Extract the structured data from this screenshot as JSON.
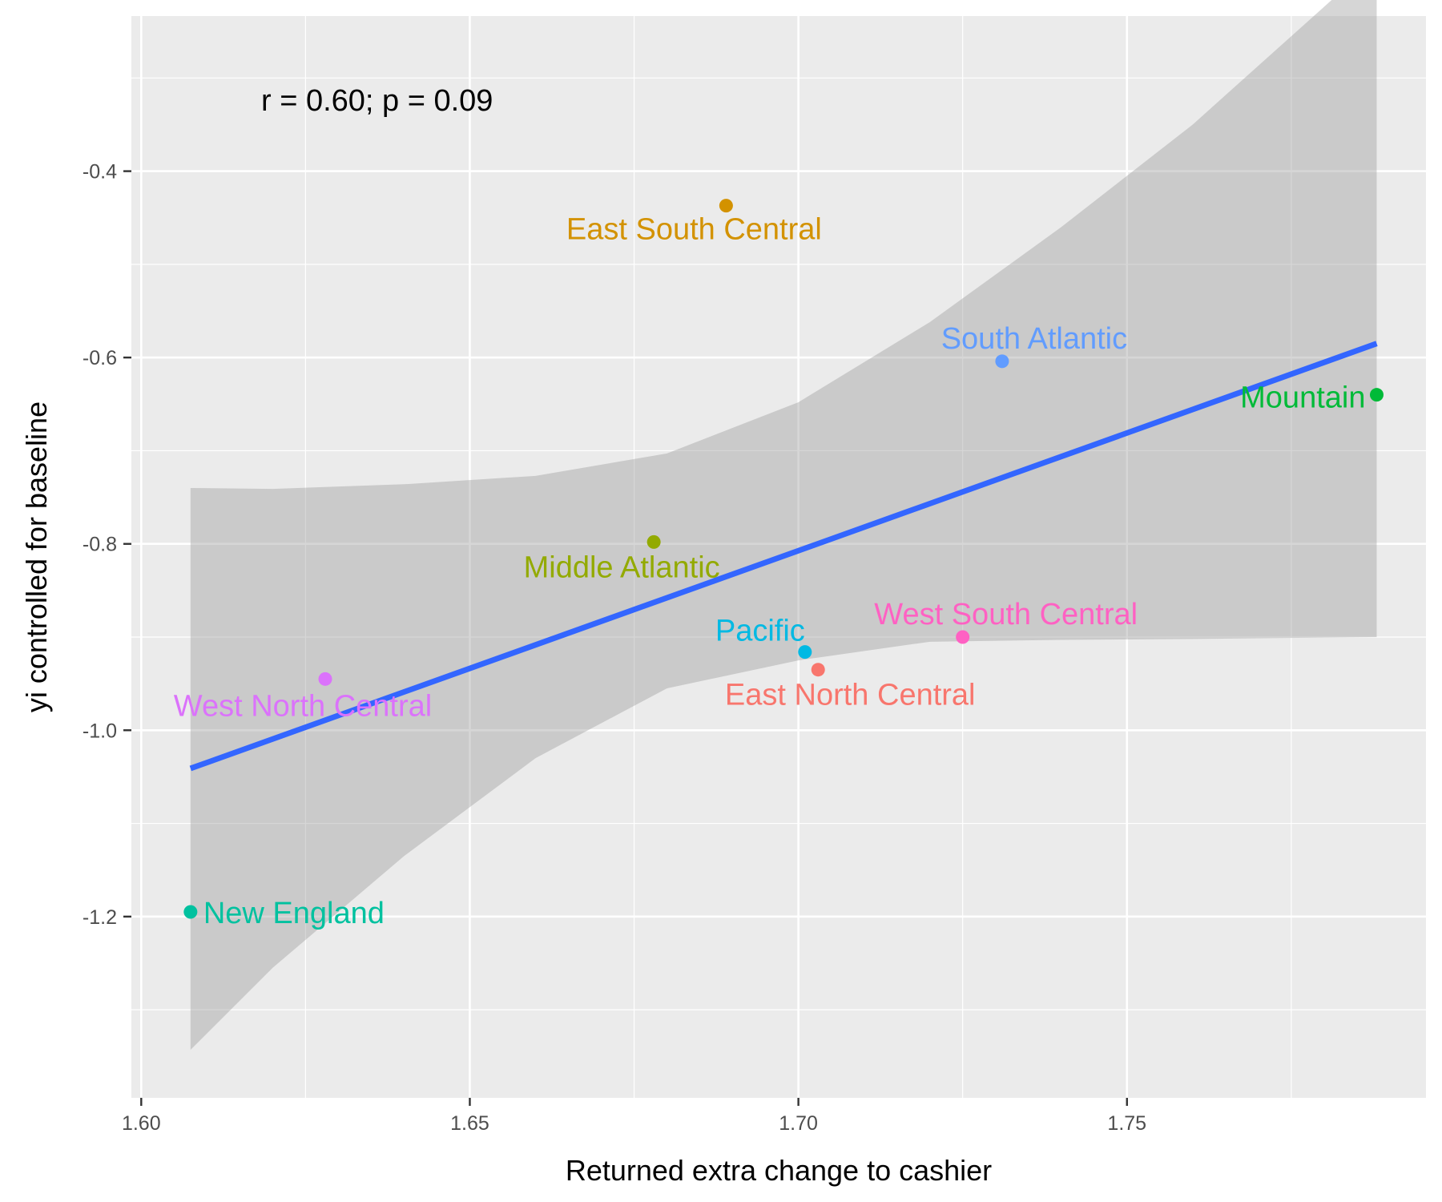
{
  "chart_data": {
    "type": "scatter",
    "title": "",
    "xlabel": "Returned extra change to cashier",
    "ylabel": "yi controlled for baseline",
    "xlim": [
      1.5985,
      1.7955
    ],
    "ylim": [
      -1.3945,
      -0.2335
    ],
    "x_ticks": [
      1.6,
      1.65,
      1.7,
      1.75
    ],
    "x_tick_labels": [
      "1.60",
      "1.65",
      "1.70",
      "1.75"
    ],
    "y_ticks": [
      -0.4,
      -0.6,
      -0.8,
      -1.0,
      -1.2
    ],
    "y_tick_labels": [
      "-0.4",
      "-0.6",
      "-0.8",
      "-1.0",
      "-1.2"
    ],
    "grid": true,
    "legend": "none",
    "annotation": "r = 0.60; p = 0.09",
    "points": [
      {
        "label": "East South Central",
        "x": 1.689,
        "y": -0.437,
        "color": "#D39200"
      },
      {
        "label": "South Atlantic",
        "x": 1.731,
        "y": -0.604,
        "color": "#619CFF"
      },
      {
        "label": "Mountain",
        "x": 1.788,
        "y": -0.64,
        "color": "#00BA38"
      },
      {
        "label": "Middle Atlantic",
        "x": 1.678,
        "y": -0.798,
        "color": "#93AA00"
      },
      {
        "label": "Pacific",
        "x": 1.701,
        "y": -0.916,
        "color": "#00B9E3"
      },
      {
        "label": "West South Central",
        "x": 1.725,
        "y": -0.9,
        "color": "#FF61C3"
      },
      {
        "label": "East North Central",
        "x": 1.703,
        "y": -0.935,
        "color": "#F8766D"
      },
      {
        "label": "West North Central",
        "x": 1.628,
        "y": -0.945,
        "color": "#DB72FB"
      },
      {
        "label": "New England",
        "x": 1.6075,
        "y": -1.195,
        "color": "#00C19F"
      }
    ],
    "regression_line": {
      "x": [
        1.6075,
        1.788
      ],
      "y": [
        -1.041,
        -0.585
      ],
      "color": "#3366FF"
    },
    "confidence_band": {
      "x": [
        1.6075,
        1.62,
        1.64,
        1.66,
        1.68,
        1.7,
        1.72,
        1.74,
        1.76,
        1.788
      ],
      "upper": [
        -0.74,
        -0.741,
        -0.736,
        -0.727,
        -0.703,
        -0.648,
        -0.562,
        -0.46,
        -0.35,
        -0.173
      ],
      "lower": [
        -1.343,
        -1.255,
        -1.135,
        -1.03,
        -0.955,
        -0.925,
        -0.905,
        -0.903,
        -0.902,
        -0.9
      ]
    }
  }
}
